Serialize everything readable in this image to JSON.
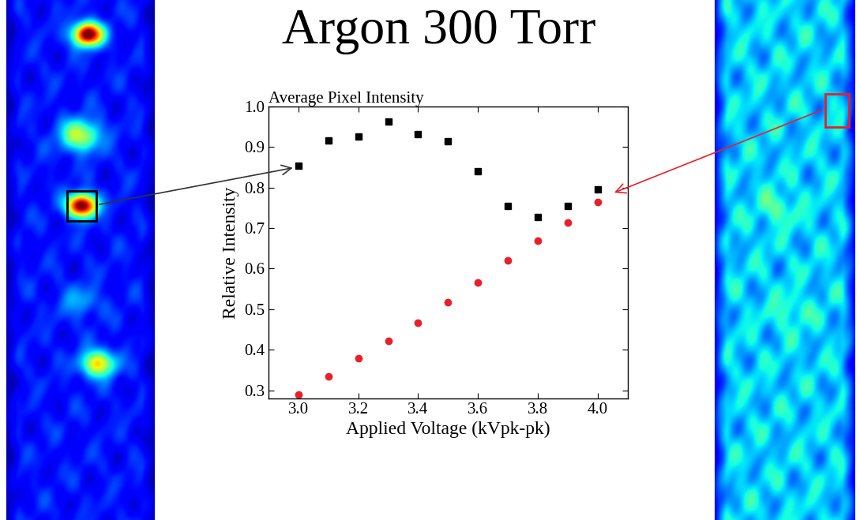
{
  "chart_data": {
    "type": "scatter",
    "title": "Argon 300 Torr",
    "subtitle": "Average Pixel Intensity",
    "x_label": "Applied Voltage (kVpk-pk)",
    "y_label": "Relative Intensity",
    "x": [
      3.0,
      3.1,
      3.2,
      3.3,
      3.4,
      3.5,
      3.6,
      3.7,
      3.8,
      3.9,
      4.0
    ],
    "series": [
      {
        "color": "#000000",
        "marker": "square",
        "values": [
          0.855,
          0.917,
          0.927,
          0.963,
          0.932,
          0.914,
          0.84,
          0.755,
          0.728,
          0.755,
          0.795
        ]
      },
      {
        "color": "#e8202a",
        "marker": "circle",
        "values": [
          0.29,
          0.335,
          0.378,
          0.422,
          0.467,
          0.518,
          0.566,
          0.621,
          0.669,
          0.714,
          0.765
        ]
      }
    ],
    "xlim": [
      2.9,
      4.1
    ],
    "xticks": [
      3.0,
      3.2,
      3.4,
      3.6,
      3.8,
      4.0
    ],
    "ylim": [
      0.28,
      1.0
    ],
    "yticks": [
      0.3,
      0.4,
      0.5,
      0.6,
      0.7,
      0.8,
      0.9,
      1.0
    ],
    "grid": false
  }
}
